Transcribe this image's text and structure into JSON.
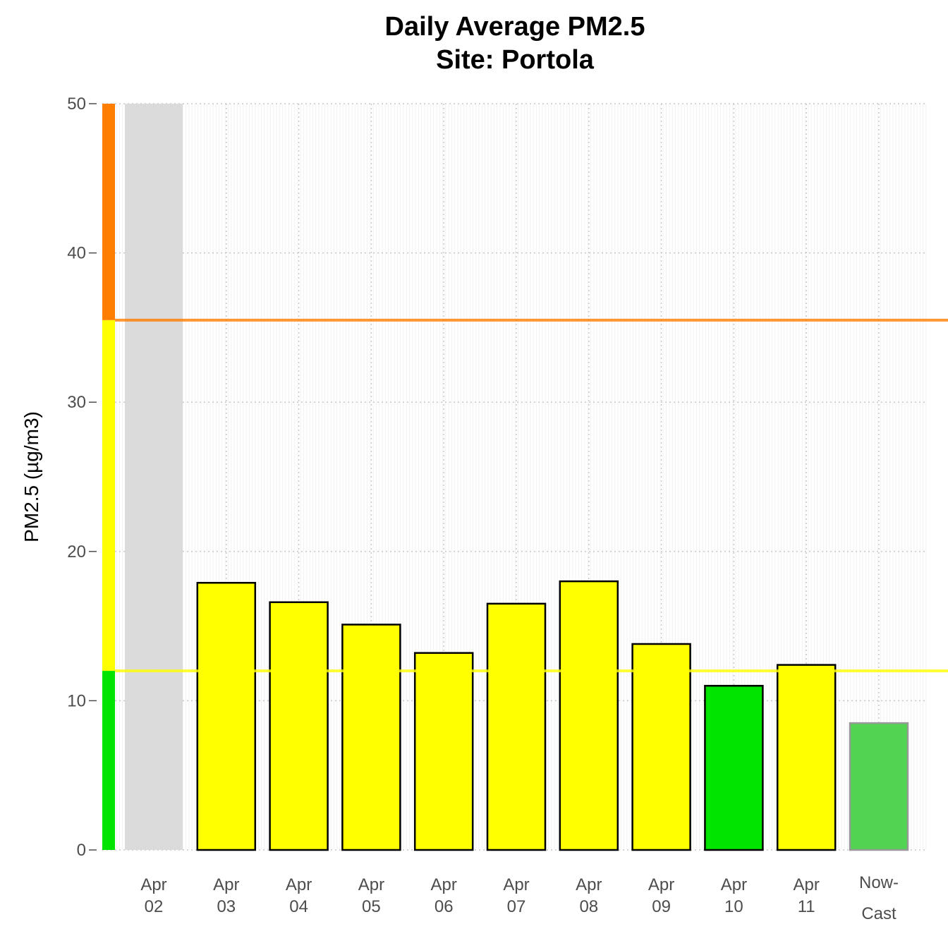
{
  "chart_data": {
    "type": "bar",
    "title": "Daily Average PM2.5",
    "subtitle": "Site: Portola",
    "xlabel": "",
    "ylabel": "PM2.5 (µg/m3)",
    "ylim": [
      0,
      50
    ],
    "yticks": [
      0,
      10,
      20,
      30,
      40,
      50
    ],
    "grid": true,
    "categories": [
      {
        "line1": "Apr",
        "line2": "02"
      },
      {
        "line1": "Apr",
        "line2": "03"
      },
      {
        "line1": "Apr",
        "line2": "04"
      },
      {
        "line1": "Apr",
        "line2": "05"
      },
      {
        "line1": "Apr",
        "line2": "06"
      },
      {
        "line1": "Apr",
        "line2": "07"
      },
      {
        "line1": "Apr",
        "line2": "08"
      },
      {
        "line1": "Apr",
        "line2": "09"
      },
      {
        "line1": "Apr",
        "line2": "10"
      },
      {
        "line1": "Apr",
        "line2": "11"
      },
      {
        "line1": "Now-",
        "line2": "Cast"
      }
    ],
    "values": [
      null,
      17.9,
      16.6,
      15.1,
      13.2,
      16.5,
      18.0,
      13.8,
      11.0,
      12.4,
      8.5
    ],
    "missing_data_color": "#d9d9d9",
    "nowcast_color": "#52d452",
    "thresholds": [
      {
        "value": 12.0,
        "color": "#ffff00"
      },
      {
        "value": 35.5,
        "color": "#ff7e00"
      }
    ],
    "aqi_bands": [
      {
        "from": 0,
        "to": 12.0,
        "color": "#00e400"
      },
      {
        "from": 12.0,
        "to": 35.5,
        "color": "#ffff00"
      },
      {
        "from": 35.5,
        "to": 50,
        "color": "#ff7e00"
      }
    ]
  }
}
